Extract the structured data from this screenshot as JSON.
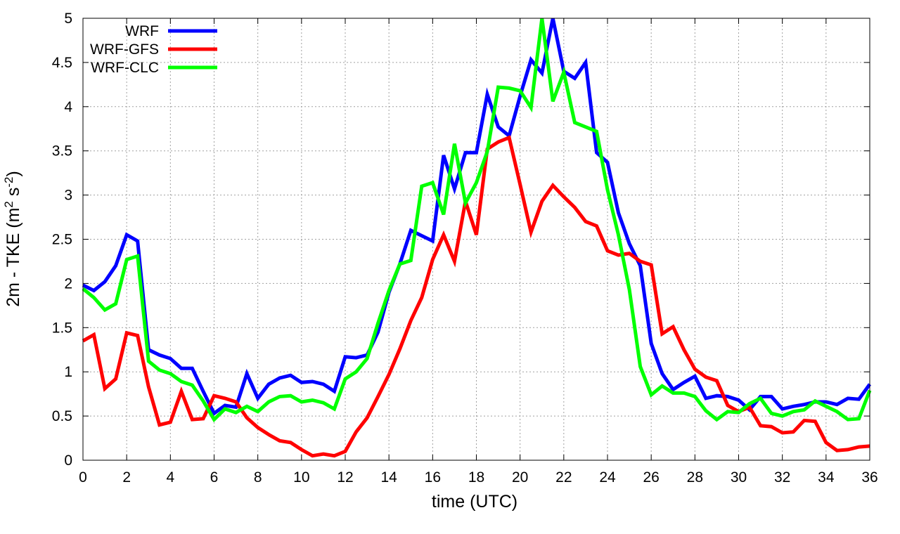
{
  "chart_data": {
    "type": "line",
    "xlabel": "time (UTC)",
    "ylabel_parts": {
      "prefix": "2m - TKE (m",
      "sup1": "2",
      "mid": " s",
      "sup2": "-2",
      "suffix": ")"
    },
    "xlim": [
      0,
      36
    ],
    "ylim": [
      0,
      5
    ],
    "x_ticks": [
      "0",
      "2",
      "4",
      "6",
      "8",
      "10",
      "12",
      "14",
      "16",
      "18",
      "20",
      "22",
      "24",
      "26",
      "28",
      "30",
      "32",
      "34",
      "36"
    ],
    "y_ticks": [
      "0",
      "0.5",
      "1",
      "1.5",
      "2",
      "2.5",
      "3",
      "3.5",
      "4",
      "4.5",
      "5"
    ],
    "grid": true,
    "legend_position": "top-left",
    "x": [
      0,
      0.5,
      1,
      1.5,
      2,
      2.5,
      3,
      3.5,
      4,
      4.5,
      5,
      5.5,
      6,
      6.5,
      7,
      7.5,
      8,
      8.5,
      9,
      9.5,
      10,
      10.5,
      11,
      11.5,
      12,
      12.5,
      13,
      13.5,
      14,
      14.5,
      15,
      15.5,
      16,
      16.5,
      17,
      17.5,
      18,
      18.5,
      19,
      19.5,
      20,
      20.5,
      21,
      21.5,
      22,
      22.5,
      23,
      23.5,
      24,
      24.5,
      25,
      25.5,
      26,
      26.5,
      27,
      27.5,
      28,
      28.5,
      29,
      29.5,
      30,
      30.5,
      31,
      31.5,
      32,
      32.5,
      33,
      33.5,
      34,
      34.5,
      35,
      35.5,
      36
    ],
    "series": [
      {
        "name": "WRF",
        "color": "#0000ff",
        "values": [
          1.98,
          1.92,
          2.02,
          2.2,
          2.55,
          2.48,
          1.25,
          1.19,
          1.15,
          1.04,
          1.04,
          0.78,
          0.53,
          0.62,
          0.6,
          0.98,
          0.7,
          0.86,
          0.93,
          0.96,
          0.88,
          0.89,
          0.86,
          0.78,
          1.17,
          1.16,
          1.19,
          1.45,
          1.9,
          2.22,
          2.6,
          2.54,
          2.48,
          3.45,
          3.07,
          3.48,
          3.48,
          4.14,
          3.77,
          3.67,
          4.12,
          4.53,
          4.38,
          5.0,
          4.4,
          4.32,
          4.5,
          3.48,
          3.37,
          2.8,
          2.45,
          2.2,
          1.32,
          0.98,
          0.8,
          0.88,
          0.95,
          0.7,
          0.73,
          0.72,
          0.68,
          0.57,
          0.72,
          0.72,
          0.58,
          0.61,
          0.63,
          0.66,
          0.66,
          0.63,
          0.7,
          0.69,
          0.86
        ]
      },
      {
        "name": "WRF-GFS",
        "color": "#ff0000",
        "values": [
          1.35,
          1.42,
          0.81,
          0.92,
          1.44,
          1.41,
          0.83,
          0.4,
          0.43,
          0.78,
          0.46,
          0.47,
          0.73,
          0.7,
          0.66,
          0.48,
          0.37,
          0.29,
          0.22,
          0.2,
          0.12,
          0.05,
          0.07,
          0.05,
          0.1,
          0.32,
          0.48,
          0.72,
          0.97,
          1.26,
          1.58,
          1.84,
          2.27,
          2.55,
          2.25,
          2.93,
          2.55,
          3.52,
          3.6,
          3.65,
          3.12,
          2.58,
          2.93,
          3.11,
          2.98,
          2.86,
          2.7,
          2.65,
          2.37,
          2.32,
          2.34,
          2.25,
          2.21,
          1.43,
          1.51,
          1.25,
          1.03,
          0.94,
          0.9,
          0.62,
          0.55,
          0.6,
          0.39,
          0.38,
          0.31,
          0.32,
          0.45,
          0.44,
          0.2,
          0.11,
          0.12,
          0.15,
          0.16
        ]
      },
      {
        "name": "WRF-CLC",
        "color": "#00ff00",
        "values": [
          1.94,
          1.84,
          1.7,
          1.77,
          2.27,
          2.31,
          1.12,
          1.02,
          0.98,
          0.89,
          0.85,
          0.67,
          0.46,
          0.58,
          0.54,
          0.61,
          0.55,
          0.66,
          0.72,
          0.73,
          0.66,
          0.68,
          0.65,
          0.58,
          0.92,
          1.0,
          1.15,
          1.55,
          1.92,
          2.22,
          2.26,
          3.1,
          3.14,
          2.78,
          3.58,
          2.91,
          3.14,
          3.49,
          4.22,
          4.21,
          4.18,
          3.99,
          5.05,
          4.06,
          4.39,
          3.82,
          3.77,
          3.72,
          3.06,
          2.55,
          1.93,
          1.06,
          0.74,
          0.84,
          0.76,
          0.76,
          0.72,
          0.56,
          0.46,
          0.55,
          0.54,
          0.64,
          0.7,
          0.53,
          0.5,
          0.55,
          0.57,
          0.67,
          0.61,
          0.55,
          0.46,
          0.47,
          0.79
        ]
      }
    ]
  }
}
